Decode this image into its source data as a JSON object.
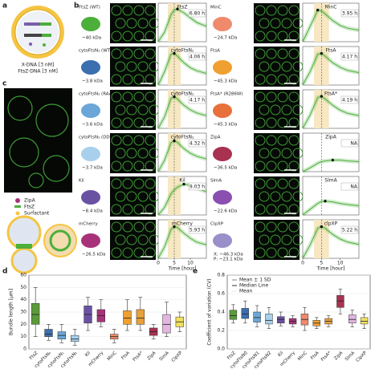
{
  "panels": {
    "labels": [
      "a",
      "b",
      "c",
      "d",
      "e"
    ]
  },
  "panel_a": {
    "lines": [
      "X-DNA [3 nM]",
      "FtsZ-DNA [3 nM]"
    ]
  },
  "panel_b": {
    "proteins": [
      {
        "name": "FtsZ (WT)",
        "mass": [
          "~40 kDa"
        ]
      },
      {
        "name": "cytoFtsN₁ (WT)",
        "mass": [
          "~3.8 kDa"
        ]
      },
      {
        "name": "cytoFtsN₁ (RAAK)",
        "mass": [
          "~3.6 kDa"
        ]
      },
      {
        "name": "cytoFtsN₁ (DDEE)",
        "mass": [
          "~3.7 kDa"
        ]
      },
      {
        "name": "Kil",
        "mass": [
          "~8.4 kDa"
        ]
      },
      {
        "name": "mCherry",
        "mass": [
          "~26.5 kDa"
        ]
      },
      {
        "name": "MinC",
        "mass": [
          "~24.7 kDa"
        ]
      },
      {
        "name": "FtsA",
        "mass": [
          "~45.3 kDa"
        ]
      },
      {
        "name": "FtsA* (R286W)",
        "mass": [
          "~45.3 kDa"
        ]
      },
      {
        "name": "ZipA",
        "mass": [
          "~36.5 kDa"
        ]
      },
      {
        "name": "SlmA",
        "mass": [
          "~22.6 kDa"
        ]
      },
      {
        "name": "ClpXP",
        "mass": [
          "X: ~46.3 kDa",
          "P: ~23.1 kDa"
        ]
      }
    ]
  },
  "panel_c": {
    "legend": [
      "ZipA",
      "FtsZ",
      "Surfactant"
    ]
  },
  "chart_data": [
    {
      "type": "line",
      "title": "FtsZ",
      "annotation": "6.80 h",
      "color": "#4caf3a",
      "xlim": [
        0,
        15
      ],
      "ylim": [
        0,
        1
      ],
      "highlight": [
        3,
        7
      ],
      "vline": 5,
      "x": [
        0,
        2,
        4,
        5,
        6,
        8,
        10,
        12,
        15
      ],
      "values": [
        0,
        0.25,
        0.7,
        0.82,
        0.85,
        0.75,
        0.62,
        0.5,
        0.4
      ]
    },
    {
      "type": "line",
      "title": "cytoFtsN₁",
      "annotation": "4.06 h",
      "color": "#4caf3a",
      "xlim": [
        0,
        15
      ],
      "ylim": [
        0,
        1
      ],
      "highlight": [
        3,
        7
      ],
      "vline": 5,
      "x": [
        0,
        2,
        4,
        5,
        6,
        8,
        10,
        12,
        15
      ],
      "values": [
        0,
        0.35,
        0.8,
        0.82,
        0.75,
        0.58,
        0.45,
        0.37,
        0.3
      ]
    },
    {
      "type": "line",
      "title": "cytoFtsN₁",
      "annotation": "4.17 h",
      "color": "#4caf3a",
      "xlim": [
        0,
        15
      ],
      "ylim": [
        0,
        1
      ],
      "highlight": [
        3,
        7
      ],
      "vline": 5,
      "x": [
        0,
        2,
        4,
        5,
        6,
        8,
        10,
        12,
        15
      ],
      "values": [
        0,
        0.3,
        0.78,
        0.82,
        0.76,
        0.6,
        0.48,
        0.4,
        0.33
      ]
    },
    {
      "type": "line",
      "title": "cytoFtsN₁",
      "annotation": "4.32 h",
      "color": "#4caf3a",
      "xlim": [
        0,
        15
      ],
      "ylim": [
        0,
        1
      ],
      "highlight": [
        3,
        7
      ],
      "vline": 5,
      "x": [
        0,
        2,
        4,
        5,
        6,
        8,
        10,
        12,
        15
      ],
      "values": [
        0,
        0.3,
        0.75,
        0.8,
        0.76,
        0.6,
        0.48,
        0.4,
        0.33
      ]
    },
    {
      "type": "line",
      "title": "Kil",
      "annotation": "9.03 h",
      "color": "#4caf3a",
      "xlim": [
        0,
        15
      ],
      "ylim": [
        0,
        1
      ],
      "highlight": [
        3,
        7
      ],
      "vline": 5,
      "x": [
        0,
        2,
        4,
        5,
        6,
        8,
        10,
        12,
        15
      ],
      "values": [
        0,
        0.2,
        0.55,
        0.65,
        0.72,
        0.8,
        0.78,
        0.7,
        0.6
      ]
    },
    {
      "type": "line",
      "title": "mCherry",
      "annotation": "5.93 h",
      "color": "#4caf3a",
      "xlim": [
        0,
        15
      ],
      "ylim": [
        0,
        1
      ],
      "highlight": [
        3,
        7
      ],
      "vline": 5,
      "x": [
        0,
        2,
        4,
        5,
        6,
        8,
        10,
        12,
        15
      ],
      "values": [
        0,
        0.3,
        0.75,
        0.82,
        0.8,
        0.65,
        0.52,
        0.42,
        0.35
      ],
      "xticks": [
        0,
        5,
        10
      ],
      "xlabel": "Time [hour]"
    },
    {
      "type": "line",
      "title": "MinC",
      "annotation": "3.95 h",
      "color": "#4caf3a",
      "xlim": [
        0,
        15
      ],
      "ylim": [
        0,
        1
      ],
      "highlight": [
        3,
        7
      ],
      "vline": 5,
      "x": [
        0,
        2,
        4,
        5,
        6,
        8,
        10,
        12,
        15
      ],
      "values": [
        0,
        0.4,
        0.82,
        0.8,
        0.72,
        0.55,
        0.42,
        0.35,
        0.3
      ]
    },
    {
      "type": "line",
      "title": "FtsA",
      "annotation": "4.17 h",
      "color": "#4caf3a",
      "xlim": [
        0,
        15
      ],
      "ylim": [
        0,
        1
      ],
      "highlight": [
        3,
        7
      ],
      "vline": 5,
      "x": [
        0,
        2,
        4,
        5,
        6,
        8,
        10,
        12,
        15
      ],
      "values": [
        0,
        0.35,
        0.8,
        0.82,
        0.75,
        0.58,
        0.46,
        0.38,
        0.32
      ]
    },
    {
      "type": "line",
      "title": "FtsA*",
      "annotation": "4.19 h",
      "color": "#4caf3a",
      "xlim": [
        0,
        15
      ],
      "ylim": [
        0,
        1
      ],
      "highlight": [
        3,
        7
      ],
      "vline": 5,
      "x": [
        0,
        2,
        4,
        5,
        6,
        8,
        10,
        12,
        15
      ],
      "values": [
        0,
        0.35,
        0.8,
        0.83,
        0.76,
        0.6,
        0.47,
        0.39,
        0.33
      ]
    },
    {
      "type": "line",
      "title": "ZipA",
      "annotation": "NA",
      "color": "#4caf3a",
      "xlim": [
        0,
        15
      ],
      "ylim": [
        0,
        1
      ],
      "vline": 5,
      "x": [
        0,
        2,
        4,
        5,
        6,
        8,
        10,
        12,
        15
      ],
      "values": [
        0,
        0.1,
        0.22,
        0.26,
        0.28,
        0.3,
        0.3,
        0.28,
        0.26
      ]
    },
    {
      "type": "line",
      "title": "SlmA",
      "annotation": "NA",
      "color": "#4caf3a",
      "xlim": [
        0,
        15
      ],
      "ylim": [
        0,
        1
      ],
      "vline": 5,
      "x": [
        0,
        2,
        4,
        5,
        6,
        8,
        10,
        12,
        15
      ],
      "values": [
        0,
        0.15,
        0.3,
        0.35,
        0.36,
        0.34,
        0.3,
        0.27,
        0.24
      ]
    },
    {
      "type": "line",
      "title": "clpXP",
      "annotation": "5.22 h",
      "color": "#4caf3a",
      "xlim": [
        0,
        15
      ],
      "ylim": [
        0,
        1
      ],
      "highlight": [
        3,
        7
      ],
      "vline": 5,
      "x": [
        0,
        2,
        4,
        5,
        6,
        8,
        10,
        12,
        15
      ],
      "values": [
        0,
        0.35,
        0.78,
        0.82,
        0.78,
        0.62,
        0.5,
        0.42,
        0.36
      ],
      "xticks": [
        0,
        5,
        10
      ],
      "xlabel": "Time [hour]"
    },
    {
      "type": "box",
      "ylabel": "Bundle length [µm]",
      "ylim": [
        0,
        60
      ],
      "yticks": [
        0,
        10,
        20,
        30,
        40,
        50,
        60
      ],
      "categories": [
        "FtsZ",
        "cytoFtsN₀",
        "cytoFtsN₁",
        "cytoFtsN₂",
        "Kil",
        "mCherry",
        "MinC",
        "FtsA",
        "FtsA*",
        "ZipA",
        "SlmA",
        "ClpXP"
      ],
      "colors": [
        "#5a9a3a",
        "#3b6fb0",
        "#6aa7d8",
        "#a8d0ec",
        "#6a52a3",
        "#a8327a",
        "#f08a6c",
        "#f0a030",
        "#e8a03a",
        "#a83250",
        "#e3b5e0",
        "#f0e060"
      ],
      "low": [
        10,
        7,
        5,
        3,
        15,
        18,
        5,
        15,
        15,
        8,
        10,
        14
      ],
      "q1": [
        20,
        10,
        8,
        6,
        21,
        22,
        8,
        20,
        20,
        11,
        13,
        18
      ],
      "median": [
        28,
        12,
        11,
        8,
        28,
        27,
        10,
        25,
        25,
        14,
        20,
        22
      ],
      "q3": [
        37,
        16,
        14,
        11,
        35,
        32,
        12,
        31,
        32,
        17,
        28,
        26
      ],
      "high": [
        50,
        20,
        20,
        16,
        42,
        40,
        16,
        40,
        42,
        20,
        38,
        30
      ]
    },
    {
      "type": "box",
      "ylabel": "Coefficient of variation (CV)",
      "ylim": [
        0,
        0.8
      ],
      "yticks": [
        {
          "value": 0,
          "label": "0.0"
        },
        0.2,
        0.4,
        0.6,
        0.8
      ],
      "legend": [
        "Mean ± 1 SD",
        "Median Line",
        "Mean"
      ],
      "categories": [
        "FtsZ",
        "cytoFtsN0",
        "cytoFtsN1",
        "cytoFtsN2",
        "Kil",
        "mCherry",
        "MinC",
        "FtsA",
        "FtsA*",
        "ZipA",
        "SlmA",
        "ClpXP"
      ],
      "colors": [
        "#5a9a3a",
        "#3b6fb0",
        "#6aa7d8",
        "#a8d0ec",
        "#6a52a3",
        "#a8327a",
        "#f08a6c",
        "#f0a030",
        "#e8a03a",
        "#a83250",
        "#e3b5e0",
        "#f0e060"
      ],
      "low": [
        0.28,
        0.28,
        0.24,
        0.22,
        0.25,
        0.24,
        0.2,
        0.22,
        0.24,
        0.38,
        0.24,
        0.22
      ],
      "q1": [
        0.32,
        0.33,
        0.29,
        0.27,
        0.28,
        0.27,
        0.26,
        0.25,
        0.27,
        0.45,
        0.28,
        0.27
      ],
      "median": [
        0.36,
        0.38,
        0.34,
        0.31,
        0.32,
        0.3,
        0.32,
        0.28,
        0.3,
        0.52,
        0.32,
        0.3
      ],
      "q3": [
        0.42,
        0.44,
        0.4,
        0.38,
        0.35,
        0.33,
        0.38,
        0.31,
        0.33,
        0.58,
        0.37,
        0.34
      ],
      "high": [
        0.48,
        0.52,
        0.47,
        0.45,
        0.4,
        0.36,
        0.45,
        0.34,
        0.36,
        0.65,
        0.42,
        0.38
      ]
    }
  ]
}
